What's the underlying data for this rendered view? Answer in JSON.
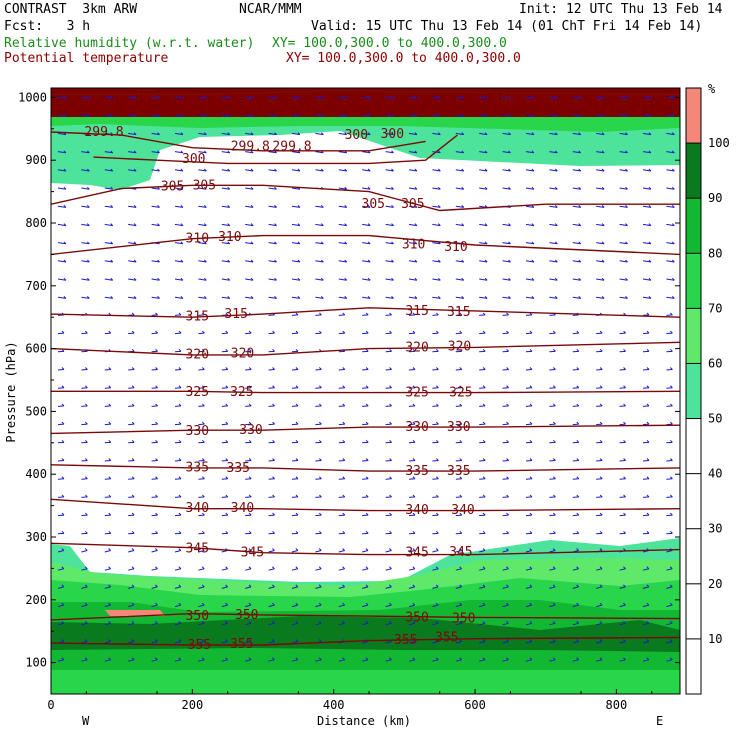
{
  "header": {
    "model": "CONTRAST  3km ARW",
    "org": "NCAR/MMM",
    "init": "Init: 12 UTC Thu 13 Feb 14",
    "fcst": "Fcst:   3 h",
    "valid": "Valid: 15 UTC Thu 13 Feb 14 (01 ChT Fri 14 Feb 14)",
    "field1": "Relative humidity (w.r.t. water)",
    "field1_xy": "XY= 100.0,300.0 to 400.0,300.0",
    "field2": "Potential temperature",
    "field2_xy": "XY= 100.0,300.0 to 400.0,300.0",
    "field1_color": "#1a8c1a",
    "field2_color": "#8b0000"
  },
  "chart_data": {
    "type": "cross-section",
    "xlabel": "Distance (km)",
    "ylabel": "Pressure (hPa)",
    "xlim": [
      0,
      890
    ],
    "ylim": [
      1015,
      50
    ],
    "x_ticks": [
      0,
      200,
      400,
      600,
      800
    ],
    "x_tick_labels": [
      "0",
      "200",
      "400",
      "600",
      "800"
    ],
    "y_ticks": [
      100,
      200,
      300,
      400,
      500,
      600,
      700,
      800,
      900,
      1000
    ],
    "y_tick_labels": [
      "100",
      "200",
      "300",
      "400",
      "500",
      "600",
      "700",
      "800",
      "900",
      "1000"
    ],
    "west_label": "W",
    "east_label": "E",
    "colorbar": {
      "unit": "%",
      "levels": [
        10,
        20,
        30,
        40,
        50,
        60,
        70,
        80,
        90,
        100
      ],
      "level_labels": [
        "10",
        "20",
        "30",
        "40",
        "50",
        "60",
        "70",
        "80",
        "90",
        "100"
      ],
      "bands": [
        {
          "from": 0,
          "to": 50,
          "color": "#ffffff"
        },
        {
          "from": 50,
          "to": 60,
          "color": "#4de39a"
        },
        {
          "from": 60,
          "to": 70,
          "color": "#5eea68"
        },
        {
          "from": 70,
          "to": 80,
          "color": "#29d64a"
        },
        {
          "from": 80,
          "to": 90,
          "color": "#13b832"
        },
        {
          "from": 90,
          "to": 100,
          "color": "#0a7a1f"
        },
        {
          "from": 100,
          "to": 110,
          "color": "#f4877a"
        }
      ]
    },
    "theta_contours": [
      {
        "value": "355",
        "points": [
          [
            0,
            131
          ],
          [
            200,
            128
          ],
          [
            300,
            128
          ],
          [
            450,
            135
          ],
          [
            600,
            138
          ],
          [
            890,
            140
          ]
        ],
        "labels": [
          [
            210,
            128
          ],
          [
            270,
            130
          ],
          [
            502,
            136
          ],
          [
            560,
            140
          ]
        ]
      },
      {
        "value": "350",
        "points": [
          [
            0,
            168
          ],
          [
            100,
            173
          ],
          [
            200,
            178
          ],
          [
            300,
            176
          ],
          [
            450,
            174
          ],
          [
            600,
            172
          ],
          [
            890,
            170
          ]
        ],
        "labels": [
          [
            207,
            174
          ],
          [
            277,
            176
          ],
          [
            518,
            172
          ],
          [
            584,
            170
          ]
        ]
      },
      {
        "value": "345",
        "points": [
          [
            0,
            290
          ],
          [
            200,
            283
          ],
          [
            300,
            275
          ],
          [
            450,
            272
          ],
          [
            600,
            272
          ],
          [
            890,
            280
          ]
        ],
        "labels": [
          [
            207,
            282
          ],
          [
            285,
            275
          ],
          [
            518,
            275
          ],
          [
            580,
            276
          ]
        ]
      },
      {
        "value": "340",
        "points": [
          [
            0,
            360
          ],
          [
            200,
            345
          ],
          [
            300,
            345
          ],
          [
            450,
            342
          ],
          [
            600,
            342
          ],
          [
            890,
            345
          ]
        ],
        "labels": [
          [
            207,
            346
          ],
          [
            271,
            346
          ],
          [
            518,
            343
          ],
          [
            583,
            343
          ]
        ]
      },
      {
        "value": "335",
        "points": [
          [
            0,
            415
          ],
          [
            200,
            410
          ],
          [
            300,
            410
          ],
          [
            450,
            405
          ],
          [
            600,
            405
          ],
          [
            890,
            410
          ]
        ],
        "labels": [
          [
            207,
            411
          ],
          [
            265,
            410
          ],
          [
            518,
            405
          ],
          [
            577,
            405
          ]
        ]
      },
      {
        "value": "330",
        "points": [
          [
            0,
            465
          ],
          [
            200,
            470
          ],
          [
            300,
            470
          ],
          [
            450,
            475
          ],
          [
            600,
            475
          ],
          [
            890,
            478
          ]
        ],
        "labels": [
          [
            207,
            469
          ],
          [
            283,
            470
          ],
          [
            518,
            475
          ],
          [
            577,
            475
          ]
        ]
      },
      {
        "value": "325",
        "points": [
          [
            0,
            532
          ],
          [
            200,
            532
          ],
          [
            300,
            530
          ],
          [
            450,
            530
          ],
          [
            600,
            530
          ],
          [
            890,
            532
          ]
        ],
        "labels": [
          [
            207,
            531
          ],
          [
            270,
            531
          ],
          [
            518,
            530
          ],
          [
            580,
            530
          ]
        ]
      },
      {
        "value": "320",
        "points": [
          [
            0,
            600
          ],
          [
            200,
            590
          ],
          [
            300,
            590
          ],
          [
            450,
            600
          ],
          [
            600,
            602
          ],
          [
            890,
            610
          ]
        ],
        "labels": [
          [
            207,
            591
          ],
          [
            271,
            592
          ],
          [
            518,
            602
          ],
          [
            578,
            603
          ]
        ]
      },
      {
        "value": "315",
        "points": [
          [
            0,
            655
          ],
          [
            200,
            650
          ],
          [
            300,
            655
          ],
          [
            450,
            665
          ],
          [
            600,
            660
          ],
          [
            890,
            650
          ]
        ],
        "labels": [
          [
            207,
            651
          ],
          [
            262,
            655
          ],
          [
            518,
            660
          ],
          [
            577,
            658
          ]
        ]
      },
      {
        "value": "310",
        "points": [
          [
            0,
            750
          ],
          [
            200,
            775
          ],
          [
            300,
            780
          ],
          [
            450,
            780
          ],
          [
            600,
            765
          ],
          [
            890,
            750
          ]
        ],
        "labels": [
          [
            207,
            775
          ],
          [
            253,
            778
          ],
          [
            513,
            766
          ],
          [
            573,
            762
          ]
        ]
      },
      {
        "value": "305",
        "points": [
          [
            0,
            830
          ],
          [
            100,
            855
          ],
          [
            200,
            860
          ],
          [
            300,
            860
          ],
          [
            450,
            850
          ],
          [
            550,
            820
          ],
          [
            700,
            830
          ],
          [
            890,
            830
          ]
        ],
        "labels": [
          [
            172,
            858
          ],
          [
            217,
            860
          ],
          [
            456,
            830
          ],
          [
            512,
            830
          ]
        ]
      },
      {
        "value": "300",
        "points": [
          [
            60,
            905
          ],
          [
            150,
            900
          ],
          [
            250,
            895
          ],
          [
            450,
            895
          ],
          [
            530,
            900
          ],
          [
            575,
            940
          ]
        ],
        "labels": [
          [
            202,
            902
          ],
          [
            432,
            940
          ],
          [
            483,
            942
          ],
          [
            641,
            996
          ]
        ]
      },
      {
        "value": "299.8",
        "points": [
          [
            0,
            945
          ],
          [
            100,
            940
          ],
          [
            200,
            920
          ],
          [
            300,
            915
          ],
          [
            450,
            915
          ],
          [
            530,
            930
          ]
        ],
        "labels": [
          [
            75,
            945
          ],
          [
            282,
            922
          ],
          [
            341,
            922
          ]
        ]
      },
      {
        "value": "300",
        "points": [
          [
            0,
            1005
          ],
          [
            200,
            1005
          ],
          [
            400,
            1010
          ],
          [
            890,
            1005
          ]
        ],
        "labels": [
          [
            133,
            1002
          ]
        ]
      }
    ]
  }
}
